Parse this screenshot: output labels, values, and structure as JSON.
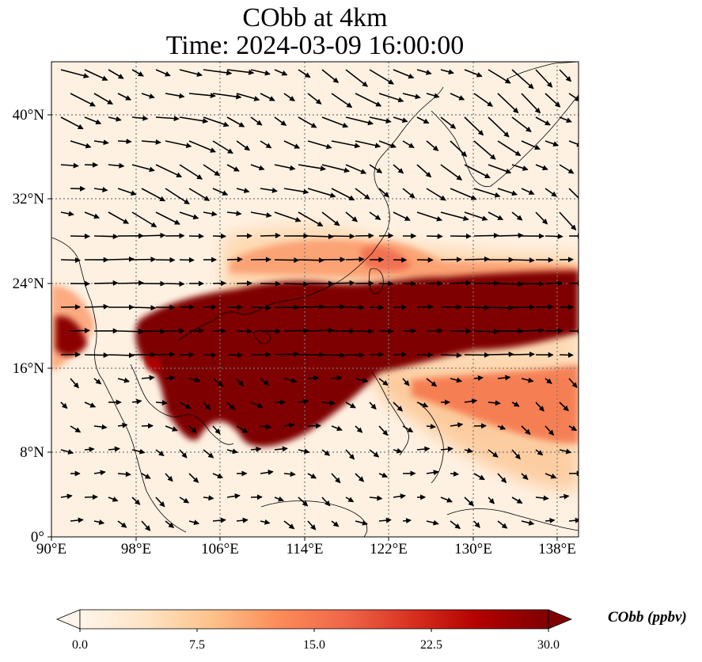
{
  "title_line1": "CObb at 4km",
  "title_line2": "Time: 2024-03-09 16:00:00",
  "map": {
    "lon_range": [
      90,
      140
    ],
    "lat_range": [
      0,
      45
    ],
    "lat_ticks": [
      {
        "value": 0,
        "label": "0°"
      },
      {
        "value": 8,
        "label": "8°N"
      },
      {
        "value": 16,
        "label": "16°N"
      },
      {
        "value": 24,
        "label": "24°N"
      },
      {
        "value": 32,
        "label": "32°N"
      },
      {
        "value": 40,
        "label": "40°N"
      }
    ],
    "lon_ticks": [
      {
        "value": 90,
        "label": "90°E"
      },
      {
        "value": 98,
        "label": "98°E"
      },
      {
        "value": 106,
        "label": "106°E"
      },
      {
        "value": 114,
        "label": "114°E"
      },
      {
        "value": 122,
        "label": "122°E"
      },
      {
        "value": 130,
        "label": "130°E"
      },
      {
        "value": 138,
        "label": "138°E"
      }
    ],
    "gridlines": true,
    "field_colors": [
      "#fff5eb",
      "#fdd0a2",
      "#fb8d59",
      "#d7301f",
      "#7f0000"
    ]
  },
  "colorbar": {
    "label": "CObb (ppbv)",
    "range": [
      0.0,
      30.0
    ],
    "ticks": [
      "0.0",
      "7.5",
      "15.0",
      "22.5",
      "30.0"
    ],
    "extend": "both",
    "colors": [
      "#fff5eb",
      "#fee4c4",
      "#fdc28c",
      "#fc8d59",
      "#ef6548",
      "#d7301f",
      "#b30000",
      "#7f0000"
    ]
  }
}
